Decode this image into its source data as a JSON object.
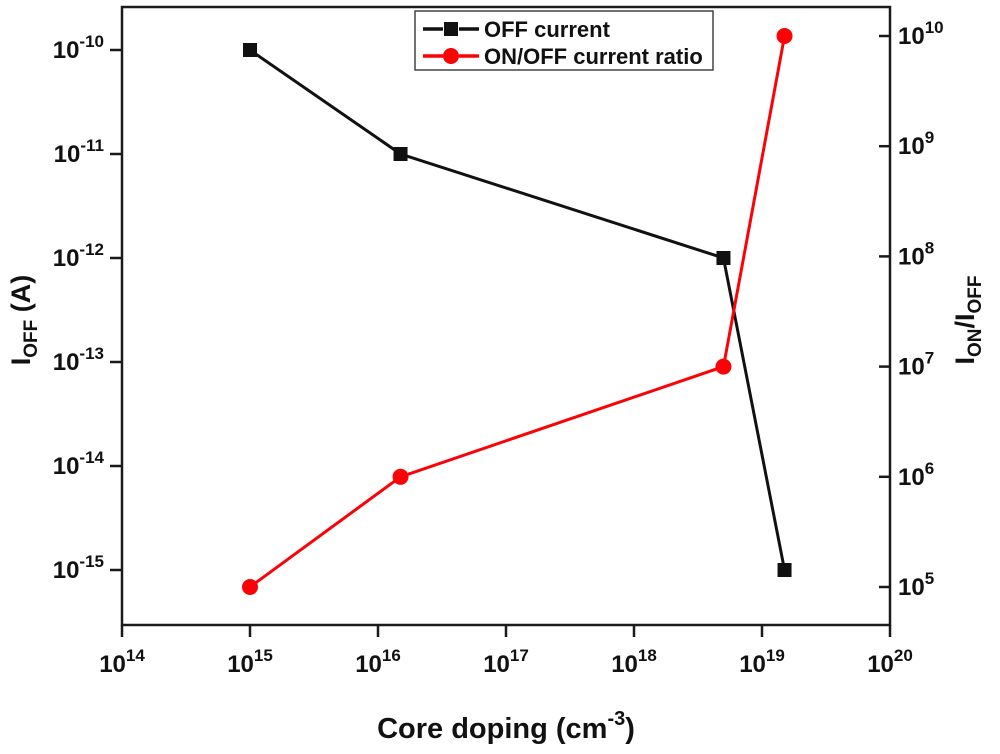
{
  "figure": {
    "background": "#ffffff",
    "frame_color": "#1a1a1a"
  },
  "chart_data": {
    "type": "line",
    "title": "",
    "grid": false,
    "xlabel": {
      "text": "Core doping (cm",
      "sup": "-3",
      "suffix": ")"
    },
    "x_axis": {
      "scale": "log",
      "tick_exponents": [
        14,
        15,
        16,
        17,
        18,
        19,
        20
      ],
      "range_exp": [
        14,
        20
      ]
    },
    "y_left_axis": {
      "scale": "log",
      "tick_exponents": [
        -10,
        -11,
        -12,
        -13,
        -14,
        -15
      ],
      "label": {
        "base": "I",
        "sub": "OFF",
        "suffix": " (A)"
      }
    },
    "y_right_axis": {
      "scale": "log",
      "tick_exponents": [
        10,
        9,
        8,
        7,
        6,
        5
      ],
      "label": {
        "base": "I",
        "sub": "ON",
        "mid": "/I",
        "sub2": "OFF"
      }
    },
    "legend": {
      "position": "top-center",
      "border_color": "#444444"
    },
    "series": [
      {
        "name": "OFF current",
        "axis": "left",
        "color": "#111111",
        "marker": "square",
        "points": [
          {
            "x": 1000000000000000.0,
            "y": 1e-10
          },
          {
            "x": 1.5e+16,
            "y": 1e-11
          },
          {
            "x": 5e+18,
            "y": 1e-12
          },
          {
            "x": 1.5e+19,
            "y": 1e-15
          }
        ]
      },
      {
        "name": "ON/OFF current ratio",
        "axis": "right",
        "color": "#fb0207",
        "marker": "circle",
        "points": [
          {
            "x": 1000000000000000.0,
            "y": 100000.0
          },
          {
            "x": 1.5e+16,
            "y": 1000000.0
          },
          {
            "x": 5e+18,
            "y": 10000000.0
          },
          {
            "x": 1.5e+19,
            "y": 10000000000.0
          }
        ]
      }
    ]
  }
}
